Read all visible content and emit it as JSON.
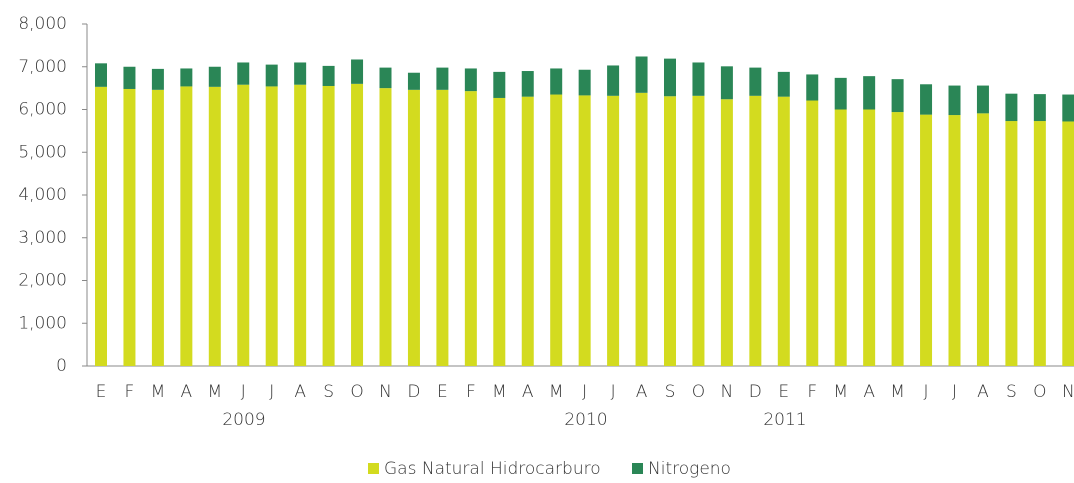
{
  "chart_data": {
    "type": "bar",
    "stacked": true,
    "categories": [
      "E",
      "F",
      "M",
      "A",
      "M",
      "J",
      "J",
      "A",
      "S",
      "O",
      "N",
      "D",
      "E",
      "F",
      "M",
      "A",
      "M",
      "J",
      "J",
      "A",
      "S",
      "O",
      "N",
      "D",
      "E",
      "F",
      "M",
      "A",
      "M",
      "J",
      "J",
      "A",
      "S",
      "O",
      "N"
    ],
    "years": [
      "2009",
      "2010",
      "2011"
    ],
    "series": [
      {
        "name": "Gas Natural Hidrocarburo",
        "color": "#d3db1f",
        "values": [
          6530,
          6480,
          6460,
          6540,
          6530,
          6580,
          6540,
          6580,
          6550,
          6600,
          6500,
          6460,
          6460,
          6430,
          6270,
          6300,
          6350,
          6330,
          6320,
          6390,
          6310,
          6320,
          6240,
          6320,
          6300,
          6210,
          6000,
          6000,
          5940,
          5880,
          5870,
          5910,
          5730,
          5730,
          5720
        ]
      },
      {
        "name": "Nitrogeno",
        "color": "#2a8656",
        "values": [
          550,
          520,
          490,
          420,
          470,
          520,
          510,
          520,
          470,
          570,
          480,
          400,
          520,
          530,
          610,
          600,
          610,
          600,
          710,
          850,
          880,
          780,
          770,
          660,
          580,
          610,
          740,
          780,
          770,
          710,
          690,
          650,
          640,
          630,
          630
        ]
      }
    ],
    "ylim": [
      0,
      8000
    ],
    "yticks": [
      0,
      {
        "value": 1000,
        "label": "1,000"
      },
      {
        "value": 2000,
        "label": "2,000"
      },
      {
        "value": 3000,
        "label": "3,000"
      },
      {
        "value": 4000,
        "label": "4,000"
      },
      {
        "value": 5000,
        "label": "5,000"
      },
      {
        "value": 6000,
        "label": "6,000"
      },
      {
        "value": 7000,
        "label": "7,000"
      },
      {
        "value": 8000,
        "label": "8,000"
      }
    ]
  }
}
